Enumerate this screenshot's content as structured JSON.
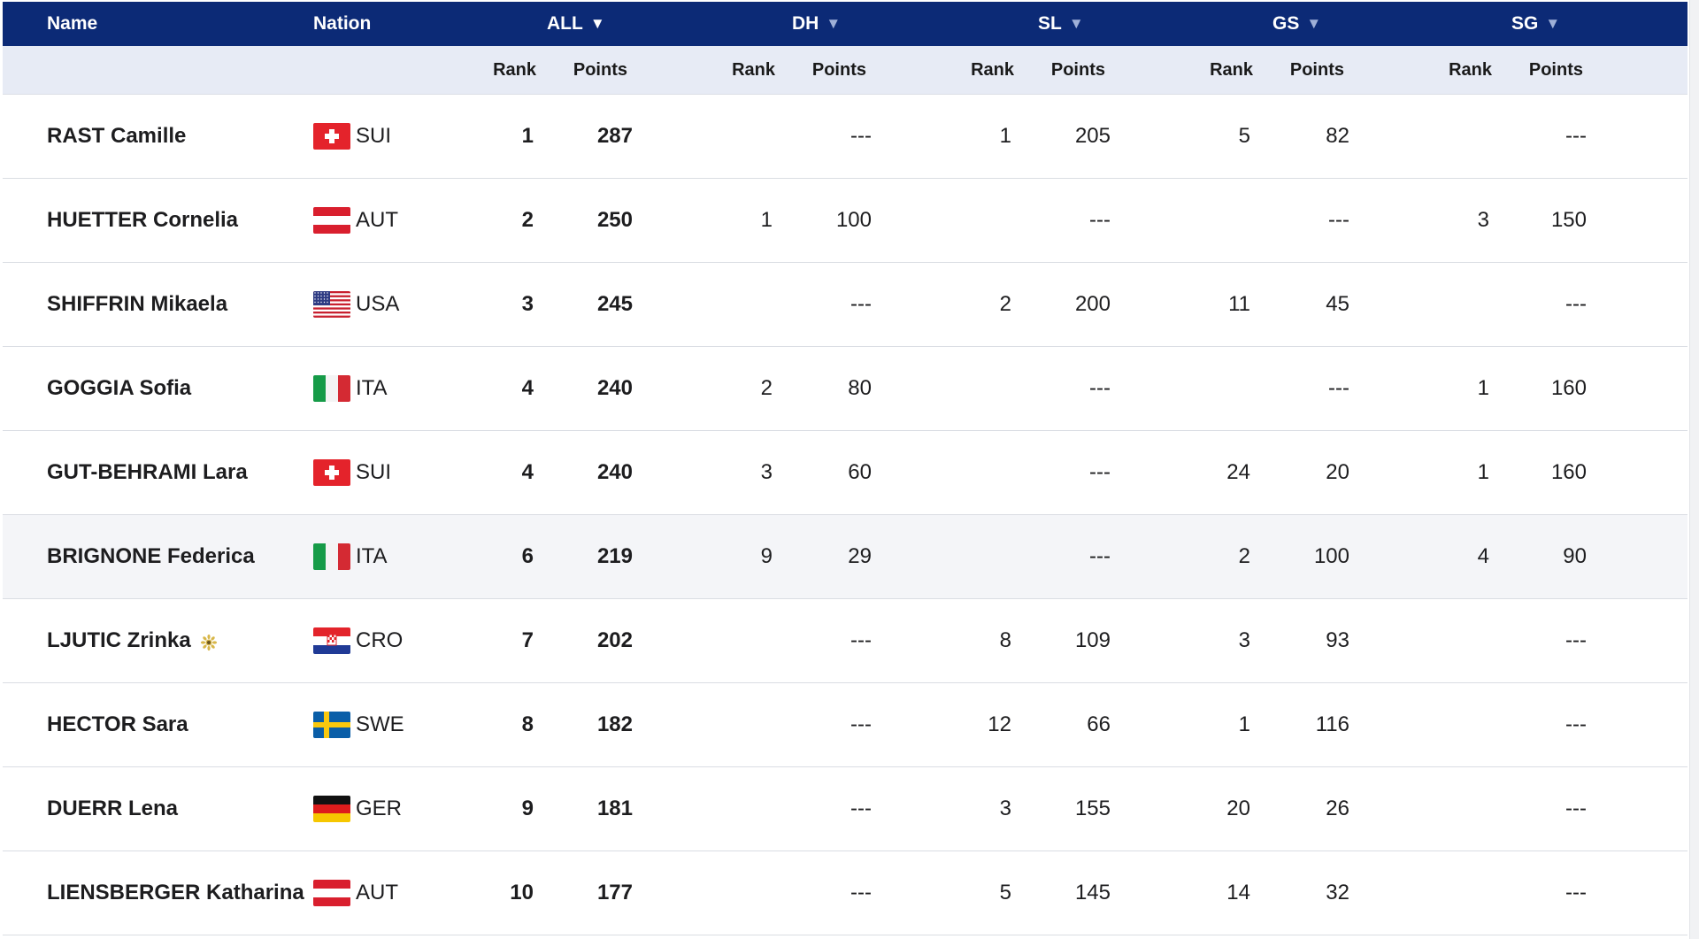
{
  "header": {
    "name": "Name",
    "nation": "Nation",
    "disciplines": [
      {
        "label": "ALL",
        "arrow": "▼",
        "active": true
      },
      {
        "label": "DH",
        "arrow": "▼",
        "active": false
      },
      {
        "label": "SL",
        "arrow": "▼",
        "active": false
      },
      {
        "label": "GS",
        "arrow": "▼",
        "active": false
      },
      {
        "label": "SG",
        "arrow": "▼",
        "active": false
      }
    ]
  },
  "subheader": {
    "rank": "Rank",
    "points": "Points"
  },
  "rows": [
    {
      "name": "RAST Camille",
      "nation": "SUI",
      "flag": "sui-flag-icon",
      "all_rank": "1",
      "all_points": "287",
      "dh_rank": "",
      "dh_points": "---",
      "sl_rank": "1",
      "sl_points": "205",
      "gs_rank": "5",
      "gs_points": "82",
      "sg_rank": "",
      "sg_points": "---"
    },
    {
      "name": "HUETTER Cornelia",
      "nation": "AUT",
      "flag": "aut-flag-icon",
      "all_rank": "2",
      "all_points": "250",
      "dh_rank": "1",
      "dh_points": "100",
      "sl_rank": "",
      "sl_points": "---",
      "gs_rank": "",
      "gs_points": "---",
      "sg_rank": "3",
      "sg_points": "150"
    },
    {
      "name": "SHIFFRIN Mikaela",
      "nation": "USA",
      "flag": "usa-flag-icon",
      "all_rank": "3",
      "all_points": "245",
      "dh_rank": "",
      "dh_points": "---",
      "sl_rank": "2",
      "sl_points": "200",
      "gs_rank": "11",
      "gs_points": "45",
      "sg_rank": "",
      "sg_points": "---"
    },
    {
      "name": "GOGGIA Sofia",
      "nation": "ITA",
      "flag": "ita-flag-icon",
      "all_rank": "4",
      "all_points": "240",
      "dh_rank": "2",
      "dh_points": "80",
      "sl_rank": "",
      "sl_points": "---",
      "gs_rank": "",
      "gs_points": "---",
      "sg_rank": "1",
      "sg_points": "160"
    },
    {
      "name": "GUT-BEHRAMI Lara",
      "nation": "SUI",
      "flag": "sui-flag-icon",
      "all_rank": "4",
      "all_points": "240",
      "dh_rank": "3",
      "dh_points": "60",
      "sl_rank": "",
      "sl_points": "---",
      "gs_rank": "24",
      "gs_points": "20",
      "sg_rank": "1",
      "sg_points": "160"
    },
    {
      "name": "BRIGNONE Federica",
      "nation": "ITA",
      "flag": "ita-flag-icon",
      "all_rank": "6",
      "all_points": "219",
      "dh_rank": "9",
      "dh_points": "29",
      "sl_rank": "",
      "sl_points": "---",
      "gs_rank": "2",
      "gs_points": "100",
      "sg_rank": "4",
      "sg_points": "90",
      "highlight": true
    },
    {
      "name": "LJUTIC Zrinka",
      "nation": "CRO",
      "flag": "cro-flag-icon",
      "all_rank": "7",
      "all_points": "202",
      "dh_rank": "",
      "dh_points": "---",
      "sl_rank": "8",
      "sl_points": "109",
      "gs_rank": "3",
      "gs_points": "93",
      "sg_rank": "",
      "sg_points": "---",
      "badge": "young-rider-icon"
    },
    {
      "name": "HECTOR Sara",
      "nation": "SWE",
      "flag": "swe-flag-icon",
      "all_rank": "8",
      "all_points": "182",
      "dh_rank": "",
      "dh_points": "---",
      "sl_rank": "12",
      "sl_points": "66",
      "gs_rank": "1",
      "gs_points": "116",
      "sg_rank": "",
      "sg_points": "---"
    },
    {
      "name": "DUERR Lena",
      "nation": "GER",
      "flag": "ger-flag-icon",
      "all_rank": "9",
      "all_points": "181",
      "dh_rank": "",
      "dh_points": "---",
      "sl_rank": "3",
      "sl_points": "155",
      "gs_rank": "20",
      "gs_points": "26",
      "sg_rank": "",
      "sg_points": "---"
    },
    {
      "name": "LIENSBERGER Katharina",
      "nation": "AUT",
      "flag": "aut-flag-icon",
      "all_rank": "10",
      "all_points": "177",
      "dh_rank": "",
      "dh_points": "---",
      "sl_rank": "5",
      "sl_points": "145",
      "gs_rank": "14",
      "gs_points": "32",
      "sg_rank": "",
      "sg_points": "---"
    }
  ]
}
